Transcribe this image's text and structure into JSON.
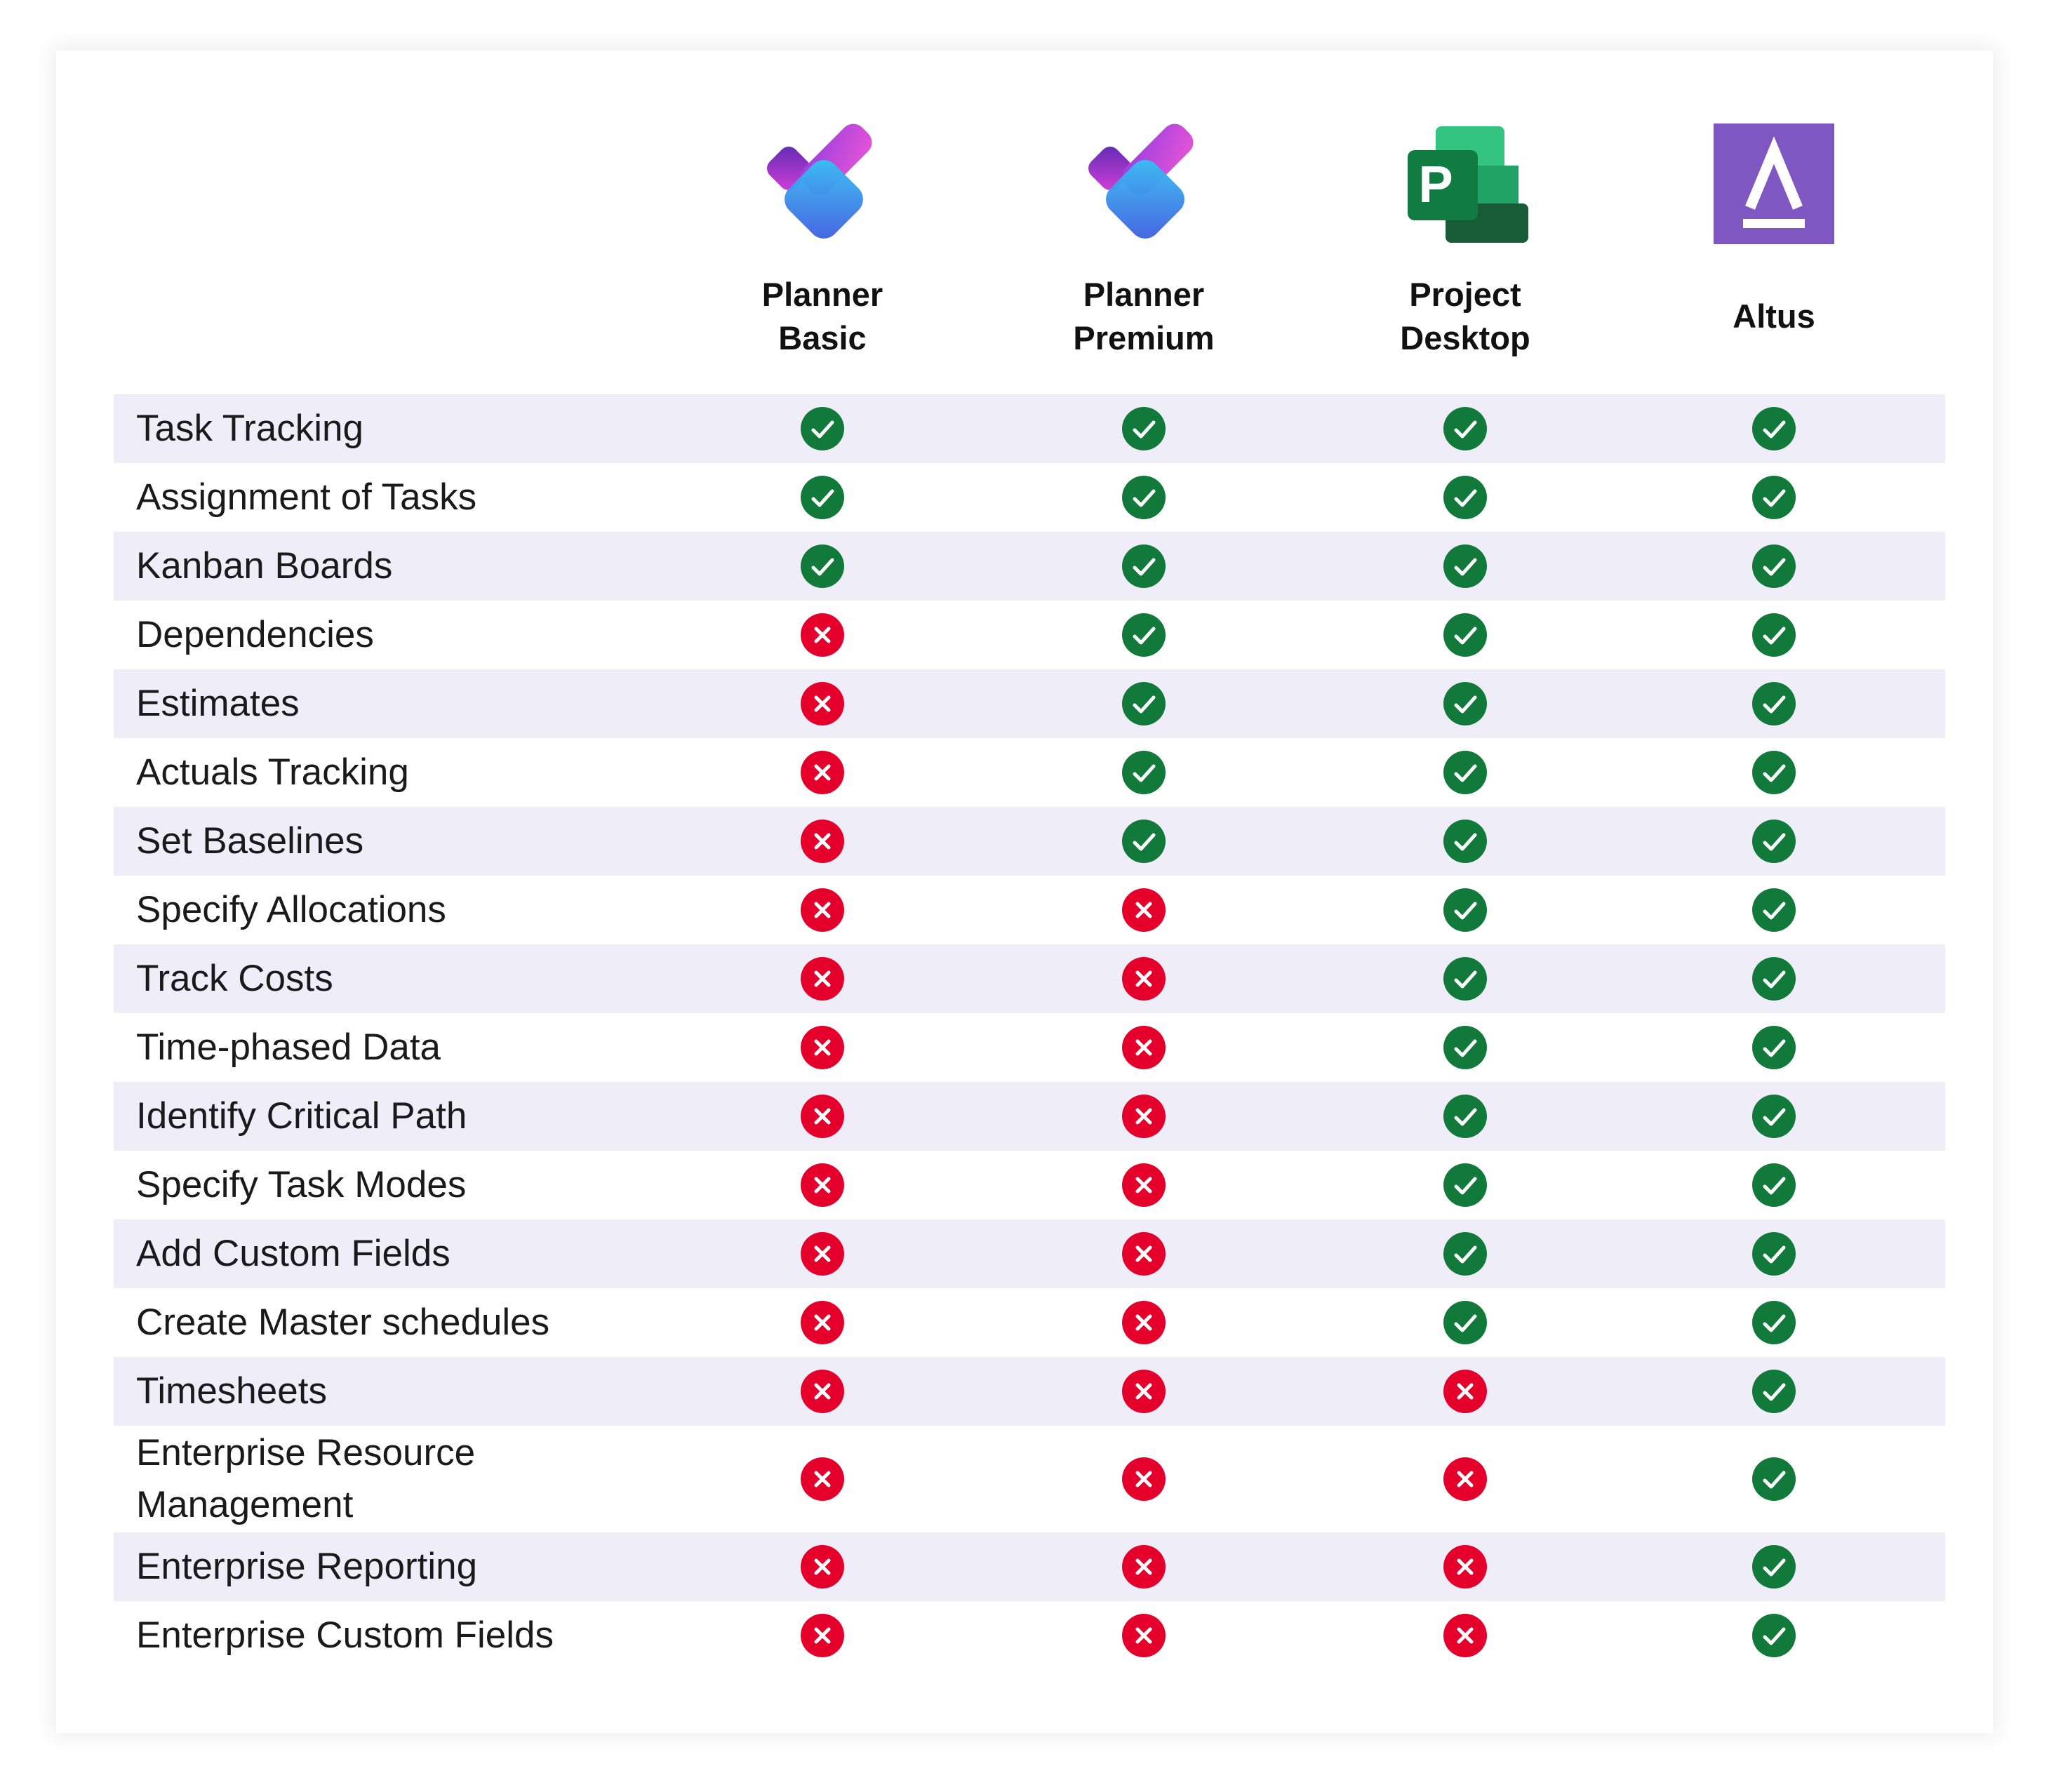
{
  "products": [
    {
      "name": "Planner\nBasic",
      "logo_icon": "planner-logo-icon"
    },
    {
      "name": "Planner\nPremium",
      "logo_icon": "planner-logo-icon"
    },
    {
      "name": "Project\nDesktop",
      "logo_icon": "project-logo-icon"
    },
    {
      "name": "Altus",
      "logo_icon": "altus-logo-icon"
    }
  ],
  "colors": {
    "check": "#117a3a",
    "cross": "#e4002b",
    "row_shade": "#efedf7",
    "altus": "#7e57c2"
  },
  "rows": [
    {
      "feature": "Task Tracking",
      "support": [
        true,
        true,
        true,
        true
      ]
    },
    {
      "feature": "Assignment of Tasks",
      "support": [
        true,
        true,
        true,
        true
      ]
    },
    {
      "feature": "Kanban Boards",
      "support": [
        true,
        true,
        true,
        true
      ]
    },
    {
      "feature": "Dependencies",
      "support": [
        false,
        true,
        true,
        true
      ]
    },
    {
      "feature": "Estimates",
      "support": [
        false,
        true,
        true,
        true
      ]
    },
    {
      "feature": "Actuals Tracking",
      "support": [
        false,
        true,
        true,
        true
      ]
    },
    {
      "feature": "Set Baselines",
      "support": [
        false,
        true,
        true,
        true
      ]
    },
    {
      "feature": "Specify Allocations",
      "support": [
        false,
        false,
        true,
        true
      ]
    },
    {
      "feature": "Track Costs",
      "support": [
        false,
        false,
        true,
        true
      ]
    },
    {
      "feature": "Time-phased Data",
      "support": [
        false,
        false,
        true,
        true
      ]
    },
    {
      "feature": "Identify Critical Path",
      "support": [
        false,
        false,
        true,
        true
      ]
    },
    {
      "feature": "Specify Task Modes",
      "support": [
        false,
        false,
        true,
        true
      ]
    },
    {
      "feature": "Add Custom Fields",
      "support": [
        false,
        false,
        true,
        true
      ]
    },
    {
      "feature": "Create Master schedules",
      "support": [
        false,
        false,
        true,
        true
      ]
    },
    {
      "feature": "Timesheets",
      "support": [
        false,
        false,
        false,
        true
      ]
    },
    {
      "feature": "Enterprise Resource Management",
      "support": [
        false,
        false,
        false,
        true
      ]
    },
    {
      "feature": "Enterprise Reporting",
      "support": [
        false,
        false,
        false,
        true
      ]
    },
    {
      "feature": "Enterprise Custom Fields",
      "support": [
        false,
        false,
        false,
        true
      ]
    }
  ]
}
